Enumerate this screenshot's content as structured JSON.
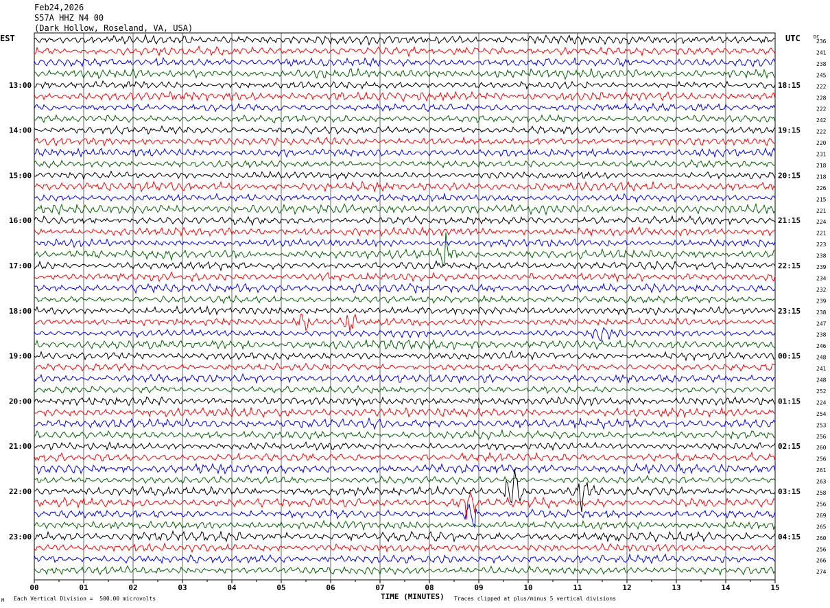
{
  "header": {
    "date": "Feb24,2026",
    "station": "S57A HHZ N4 00",
    "location": "(Dark Hollow, Roseland, VA, USA)"
  },
  "left_timezone": "EST",
  "right_timezone": "UTC",
  "dc_header": "DC",
  "xlabel": "TIME (MINUTES)",
  "footer": {
    "vertical_division": "Each Vertical Division =  500.00 microvolts",
    "clip_note": "Traces clipped at plus/minus 5 vertical divisions",
    "mark": "M"
  },
  "colors": {
    "trace_cycle": [
      "#000000",
      "#ff0000",
      "#0000ff",
      "#006400"
    ],
    "gridline": "#000000"
  },
  "chart_data": {
    "type": "line",
    "title": "",
    "xlabel": "TIME (MINUTES)",
    "xlim": [
      0,
      15
    ],
    "x_ticks": [
      "00",
      "01",
      "02",
      "03",
      "04",
      "05",
      "06",
      "07",
      "08",
      "09",
      "10",
      "11",
      "12",
      "13",
      "14",
      "15"
    ],
    "grid": true,
    "left_hour_labels": [
      "13:00",
      "14:00",
      "15:00",
      "16:00",
      "17:00",
      "18:00",
      "19:00",
      "20:00",
      "21:00",
      "22:00",
      "23:00"
    ],
    "right_hour_labels": [
      "18:15",
      "19:15",
      "20:15",
      "21:15",
      "22:15",
      "23:15",
      "00:15",
      "01:15",
      "02:15",
      "03:15",
      "04:15"
    ],
    "dc_values": [
      236,
      241,
      238,
      245,
      222,
      228,
      222,
      242,
      222,
      220,
      231,
      218,
      218,
      226,
      215,
      221,
      224,
      221,
      223,
      238,
      239,
      234,
      232,
      239,
      238,
      247,
      238,
      246,
      248,
      241,
      248,
      252,
      224,
      254,
      253,
      256,
      260,
      256,
      261,
      263,
      258,
      256,
      269,
      265,
      260,
      256,
      266,
      274
    ],
    "events": [
      {
        "row": 19,
        "minute": 8.35,
        "amplitude": 1.8
      },
      {
        "row": 25,
        "minute": 5.45,
        "amplitude": 1.9
      },
      {
        "row": 25,
        "minute": 6.4,
        "amplitude": 1.6
      },
      {
        "row": 26,
        "minute": 11.5,
        "amplitude": 1.7
      },
      {
        "row": 40,
        "minute": 9.7,
        "amplitude": 3.5
      },
      {
        "row": 40,
        "minute": 11.1,
        "amplitude": 1.8
      },
      {
        "row": 41,
        "minute": 8.8,
        "amplitude": 2.8
      },
      {
        "row": 42,
        "minute": 8.9,
        "amplitude": 2.5
      }
    ]
  }
}
